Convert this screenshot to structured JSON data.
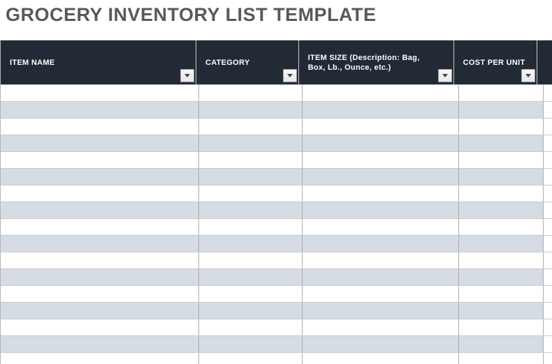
{
  "title": "GROCERY INVENTORY LIST TEMPLATE",
  "table": {
    "columns": [
      {
        "id": "item-name",
        "label": "ITEM NAME"
      },
      {
        "id": "category",
        "label": "CATEGORY"
      },
      {
        "id": "item-size",
        "label": "ITEM SIZE (Description: Bag, Box, Lb., Ounce, etc.)"
      },
      {
        "id": "cost-per-unit",
        "label": "COST PER UNIT"
      }
    ],
    "row_count": 17,
    "rows": [
      [
        "",
        "",
        "",
        ""
      ],
      [
        "",
        "",
        "",
        ""
      ],
      [
        "",
        "",
        "",
        ""
      ],
      [
        "",
        "",
        "",
        ""
      ],
      [
        "",
        "",
        "",
        ""
      ],
      [
        "",
        "",
        "",
        ""
      ],
      [
        "",
        "",
        "",
        ""
      ],
      [
        "",
        "",
        "",
        ""
      ],
      [
        "",
        "",
        "",
        ""
      ],
      [
        "",
        "",
        "",
        ""
      ],
      [
        "",
        "",
        "",
        ""
      ],
      [
        "",
        "",
        "",
        ""
      ],
      [
        "",
        "",
        "",
        ""
      ],
      [
        "",
        "",
        "",
        ""
      ],
      [
        "",
        "",
        "",
        ""
      ],
      [
        "",
        "",
        "",
        ""
      ],
      [
        "",
        "",
        "",
        ""
      ]
    ]
  },
  "icons": {
    "header_filter": "filter-dropdown-chevron"
  },
  "colors": {
    "header_bg": "#222b35",
    "header_text": "#ffffff",
    "row_bg": "#ffffff",
    "row_alt_bg": "#d6dce4",
    "title_text": "#58595b",
    "grid_vertical": "#ababab",
    "grid_horizontal": "#c6cad0",
    "filter_btn_bg": "#f2f2f2",
    "filter_btn_border": "#9e9e9e",
    "filter_arrow": "#41464d"
  }
}
